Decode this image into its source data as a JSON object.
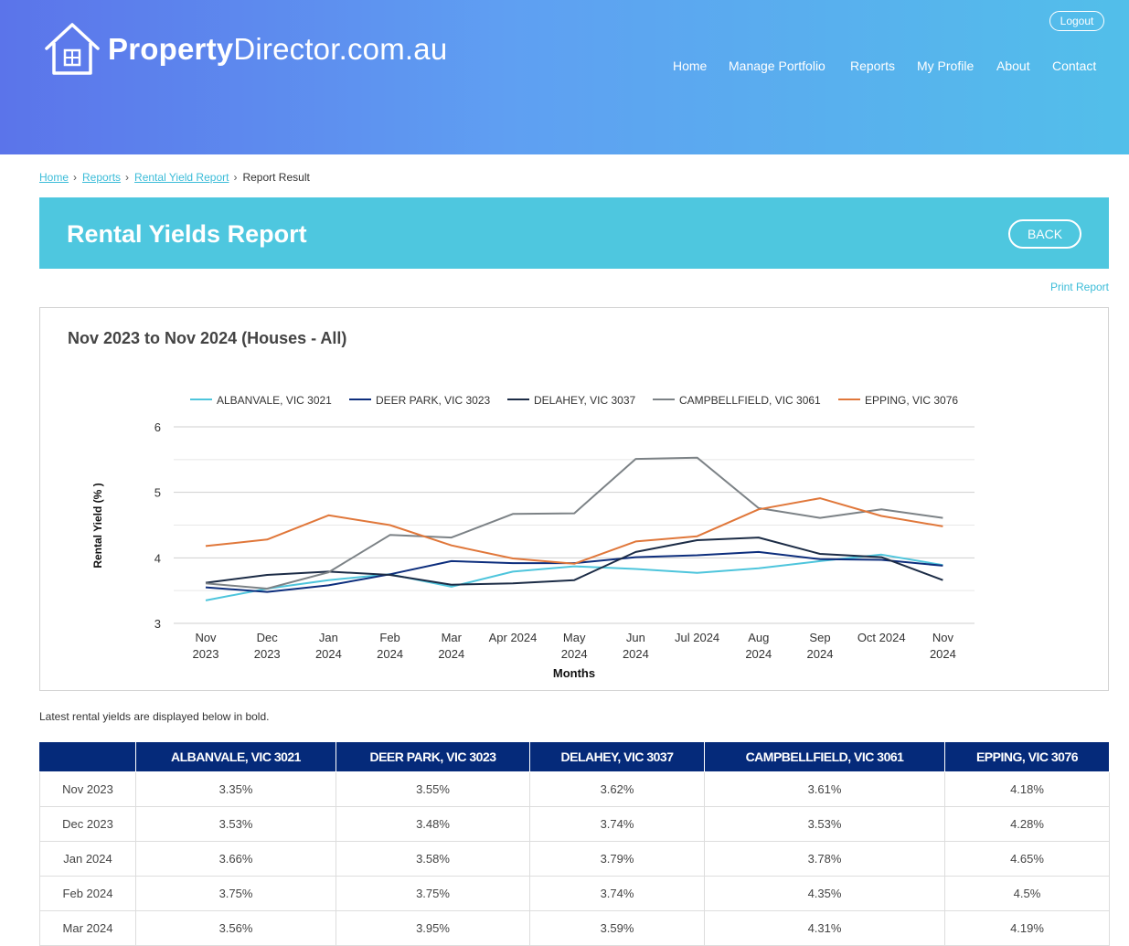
{
  "header": {
    "logo_bold": "Property",
    "logo_rest": "Director.com.au",
    "logout_label": "Logout",
    "nav": [
      "Home",
      "Manage Portfolio",
      "Reports",
      "My Profile",
      "About",
      "Contact"
    ]
  },
  "breadcrumb": {
    "items": [
      "Home",
      "Reports",
      "Rental Yield Report"
    ],
    "current": "Report Result"
  },
  "banner": {
    "title": "Rental Yields Report",
    "back_label": "BACK"
  },
  "print_label": "Print Report",
  "chart_data": {
    "type": "line",
    "title": "Nov 2023 to Nov 2024 (Houses - All)",
    "xlabel": "Months",
    "ylabel": "Rental Yield (% )",
    "ylim": [
      3,
      6
    ],
    "yticks": [
      3,
      4,
      5,
      6
    ],
    "grid": true,
    "legend": "top",
    "categories": [
      [
        "Nov",
        "2023"
      ],
      [
        "Dec",
        "2023"
      ],
      [
        "Jan",
        "2024"
      ],
      [
        "Feb",
        "2024"
      ],
      [
        "Mar",
        "2024"
      ],
      [
        "Apr 2024"
      ],
      [
        "May",
        "2024"
      ],
      [
        "Jun",
        "2024"
      ],
      [
        "Jul 2024"
      ],
      [
        "Aug",
        "2024"
      ],
      [
        "Sep",
        "2024"
      ],
      [
        "Oct 2024"
      ],
      [
        "Nov",
        "2024"
      ]
    ],
    "series": [
      {
        "name": "ALBANVALE, VIC 3021",
        "color": "#4ec5dc",
        "values": [
          3.35,
          3.53,
          3.66,
          3.75,
          3.56,
          3.79,
          3.87,
          3.83,
          3.77,
          3.84,
          3.95,
          4.05,
          3.89
        ]
      },
      {
        "name": "DEER PARK, VIC 3023",
        "color": "#0d2e7d",
        "values": [
          3.55,
          3.48,
          3.58,
          3.75,
          3.95,
          3.92,
          3.92,
          4.01,
          4.04,
          4.09,
          3.98,
          3.97,
          3.88
        ]
      },
      {
        "name": "DELAHEY, VIC 3037",
        "color": "#1c2c46",
        "values": [
          3.62,
          3.74,
          3.79,
          3.74,
          3.59,
          3.61,
          3.66,
          4.09,
          4.27,
          4.31,
          4.06,
          4.01,
          3.66
        ]
      },
      {
        "name": "CAMPBELLFIELD, VIC 3061",
        "color": "#7c8286",
        "values": [
          3.61,
          3.53,
          3.78,
          4.35,
          4.31,
          4.67,
          4.68,
          5.51,
          5.53,
          4.76,
          4.61,
          4.74,
          4.61
        ]
      },
      {
        "name": "EPPING, VIC 3076",
        "color": "#e0773a",
        "values": [
          4.18,
          4.28,
          4.65,
          4.5,
          4.19,
          3.99,
          3.91,
          4.25,
          4.33,
          4.74,
          4.91,
          4.64,
          4.48
        ]
      }
    ]
  },
  "note": "Latest rental yields are displayed below in bold.",
  "table": {
    "headers": [
      "",
      "ALBANVALE, VIC 3021",
      "DEER PARK, VIC 3023",
      "DELAHEY, VIC 3037",
      "CAMPBELLFIELD, VIC 3061",
      "EPPING, VIC 3076"
    ],
    "rows": [
      [
        "Nov 2023",
        "3.35%",
        "3.55%",
        "3.62%",
        "3.61%",
        "4.18%"
      ],
      [
        "Dec 2023",
        "3.53%",
        "3.48%",
        "3.74%",
        "3.53%",
        "4.28%"
      ],
      [
        "Jan 2024",
        "3.66%",
        "3.58%",
        "3.79%",
        "3.78%",
        "4.65%"
      ],
      [
        "Feb 2024",
        "3.75%",
        "3.75%",
        "3.74%",
        "4.35%",
        "4.5%"
      ],
      [
        "Mar 2024",
        "3.56%",
        "3.95%",
        "3.59%",
        "4.31%",
        "4.19%"
      ]
    ]
  }
}
